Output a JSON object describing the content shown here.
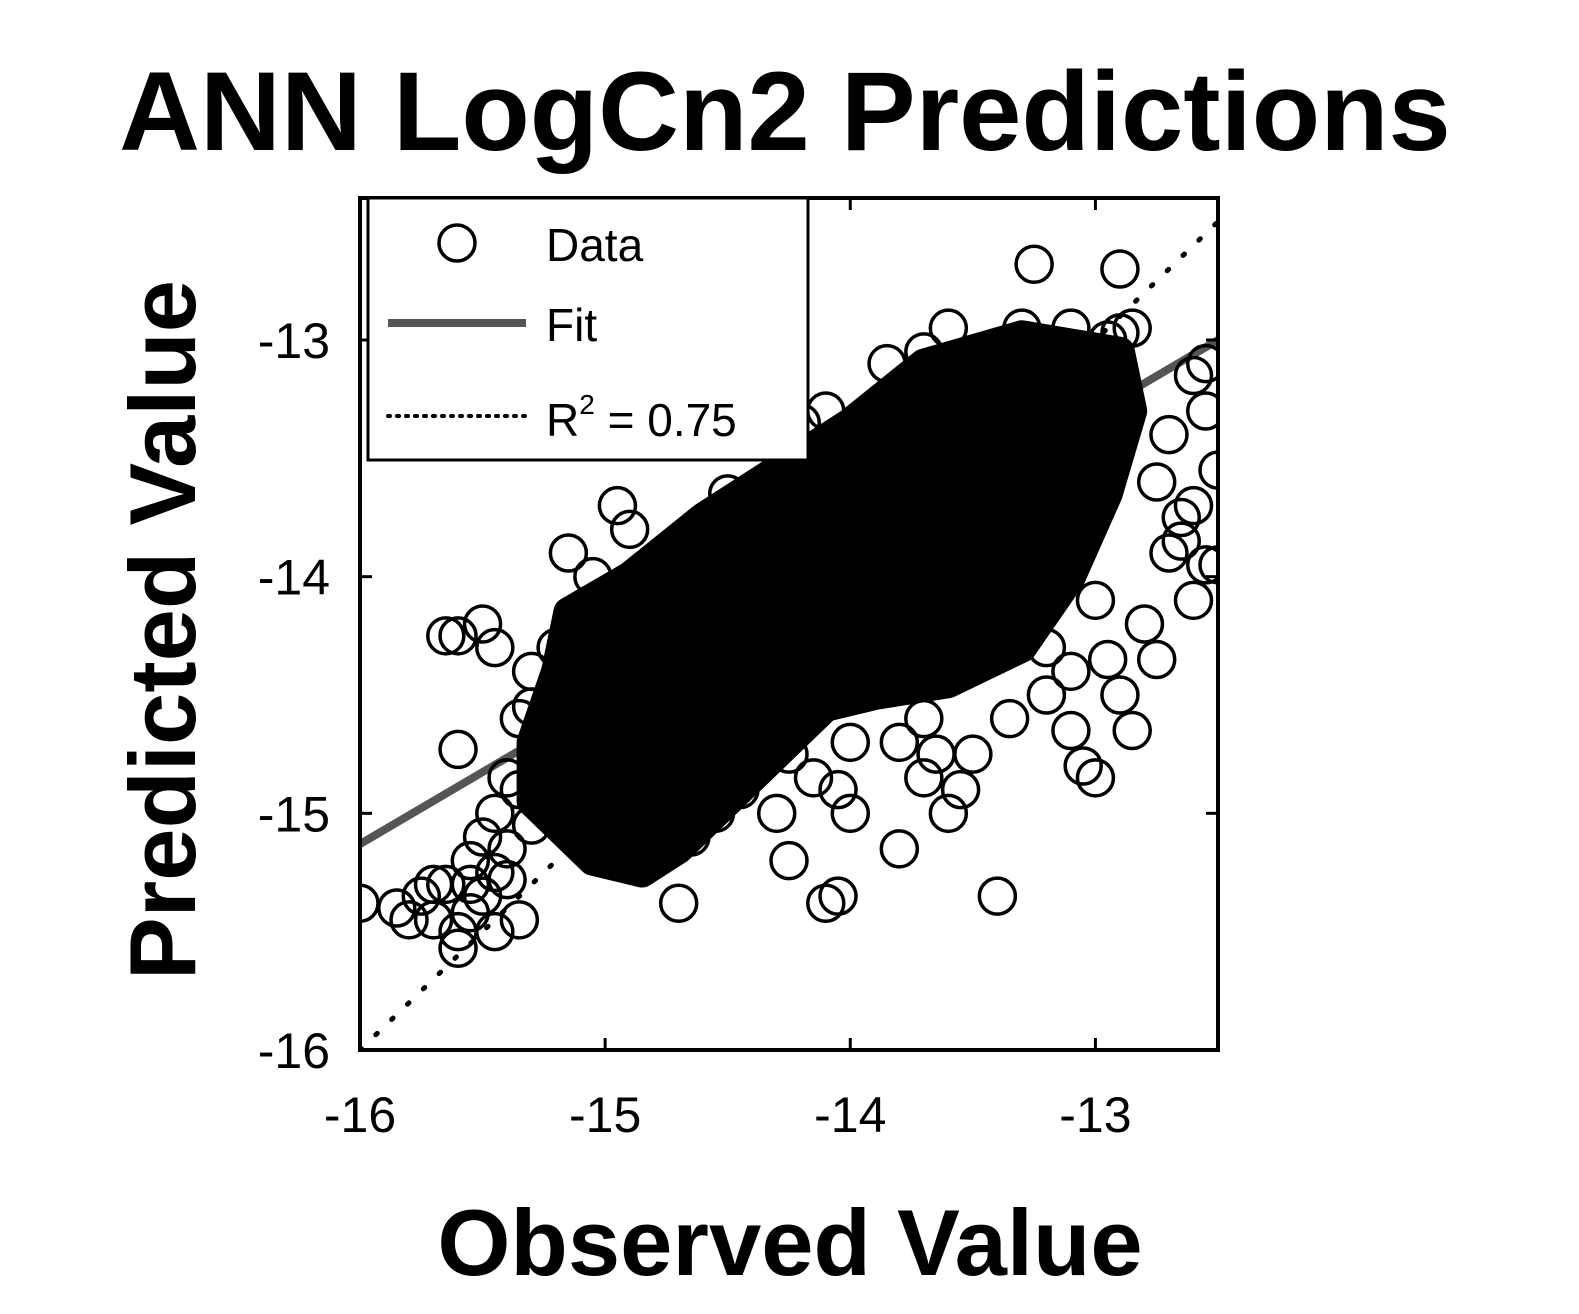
{
  "chart_data": {
    "type": "scatter",
    "title": "ANN LogCn2 Predictions",
    "xlabel": "Observed Value",
    "ylabel": "Predicted Value",
    "xlim": [
      -16,
      -12.5
    ],
    "ylim": [
      -16,
      -12.4
    ],
    "xticks": [
      -16,
      -15,
      -14,
      -13
    ],
    "yticks": [
      -16,
      -15,
      -14,
      -13
    ],
    "xtick_labels": [
      "-16",
      "-15",
      "-14",
      "-13"
    ],
    "ytick_labels": [
      "-16",
      "-15",
      "-14",
      "-13"
    ],
    "grid": false,
    "legend_position": "top-left",
    "marker_color": "#000000",
    "fit_color": "#555555",
    "series": [
      {
        "name": "Data",
        "kind": "scatter",
        "marker": "circle-open",
        "dense_core_polygon": [
          [
            -15.05,
            -15.2
          ],
          [
            -15.3,
            -14.95
          ],
          [
            -15.3,
            -14.7
          ],
          [
            -15.2,
            -14.4
          ],
          [
            -15.15,
            -14.15
          ],
          [
            -14.9,
            -14.0
          ],
          [
            -14.6,
            -13.75
          ],
          [
            -14.3,
            -13.55
          ],
          [
            -14.0,
            -13.35
          ],
          [
            -13.7,
            -13.1
          ],
          [
            -13.3,
            -12.98
          ],
          [
            -12.9,
            -13.05
          ],
          [
            -12.85,
            -13.3
          ],
          [
            -12.95,
            -13.65
          ],
          [
            -13.1,
            -14.0
          ],
          [
            -13.3,
            -14.3
          ],
          [
            -13.6,
            -14.45
          ],
          [
            -13.9,
            -14.5
          ],
          [
            -14.1,
            -14.55
          ],
          [
            -14.3,
            -14.75
          ],
          [
            -14.5,
            -14.95
          ],
          [
            -14.7,
            -15.15
          ],
          [
            -14.85,
            -15.25
          ]
        ],
        "points": [
          [
            -16.0,
            -15.38
          ],
          [
            -15.85,
            -15.4
          ],
          [
            -15.75,
            -15.35
          ],
          [
            -15.7,
            -15.45
          ],
          [
            -15.65,
            -15.3
          ],
          [
            -15.6,
            -15.5
          ],
          [
            -15.6,
            -15.57
          ],
          [
            -15.55,
            -15.42
          ],
          [
            -15.5,
            -15.35
          ],
          [
            -15.45,
            -15.5
          ],
          [
            -15.4,
            -15.28
          ],
          [
            -15.35,
            -15.45
          ],
          [
            -15.55,
            -15.2
          ],
          [
            -15.5,
            -15.1
          ],
          [
            -15.45,
            -15.0
          ],
          [
            -15.4,
            -15.15
          ],
          [
            -15.35,
            -14.9
          ],
          [
            -15.3,
            -15.05
          ],
          [
            -15.25,
            -14.75
          ],
          [
            -15.6,
            -14.25
          ],
          [
            -15.65,
            -14.25
          ],
          [
            -15.5,
            -14.2
          ],
          [
            -15.45,
            -14.3
          ],
          [
            -15.3,
            -14.4
          ],
          [
            -15.35,
            -14.6
          ],
          [
            -15.6,
            -14.73
          ],
          [
            -15.15,
            -13.9
          ],
          [
            -15.05,
            -14.0
          ],
          [
            -14.95,
            -13.7
          ],
          [
            -14.9,
            -13.8
          ],
          [
            -14.7,
            -15.38
          ],
          [
            -14.95,
            -15.2
          ],
          [
            -14.85,
            -15.15
          ],
          [
            -14.75,
            -15.05
          ],
          [
            -14.55,
            -15.0
          ],
          [
            -14.45,
            -14.9
          ],
          [
            -14.3,
            -15.0
          ],
          [
            -14.15,
            -14.85
          ],
          [
            -14.05,
            -14.9
          ],
          [
            -14.0,
            -15.0
          ],
          [
            -14.25,
            -15.2
          ],
          [
            -14.25,
            -14.75
          ],
          [
            -14.1,
            -15.38
          ],
          [
            -14.05,
            -15.35
          ],
          [
            -13.8,
            -15.15
          ],
          [
            -13.6,
            -15.0
          ],
          [
            -13.55,
            -14.9
          ],
          [
            -13.7,
            -14.85
          ],
          [
            -13.5,
            -14.75
          ],
          [
            -13.4,
            -15.35
          ],
          [
            -13.35,
            -14.6
          ],
          [
            -13.2,
            -14.5
          ],
          [
            -13.1,
            -14.65
          ],
          [
            -13.05,
            -14.8
          ],
          [
            -13.0,
            -14.85
          ],
          [
            -12.85,
            -14.65
          ],
          [
            -12.9,
            -14.5
          ],
          [
            -12.75,
            -14.35
          ],
          [
            -12.8,
            -14.2
          ],
          [
            -12.6,
            -14.1
          ],
          [
            -12.55,
            -13.95
          ],
          [
            -12.5,
            -13.95
          ],
          [
            -12.65,
            -13.85
          ],
          [
            -12.6,
            -13.7
          ],
          [
            -12.75,
            -13.6
          ],
          [
            -12.7,
            -13.4
          ],
          [
            -12.55,
            -13.3
          ],
          [
            -12.5,
            -13.55
          ],
          [
            -12.6,
            -13.15
          ],
          [
            -12.55,
            -13.1
          ],
          [
            -12.9,
            -12.97
          ],
          [
            -12.95,
            -13.0
          ],
          [
            -12.85,
            -12.95
          ],
          [
            -13.1,
            -12.95
          ],
          [
            -13.3,
            -12.95
          ],
          [
            -13.6,
            -12.95
          ],
          [
            -13.45,
            -13.05
          ],
          [
            -13.7,
            -13.05
          ],
          [
            -13.25,
            -12.68
          ],
          [
            -12.9,
            -12.7
          ],
          [
            -14.1,
            -13.3
          ],
          [
            -14.3,
            -13.6
          ],
          [
            -14.5,
            -13.65
          ],
          [
            -14.2,
            -13.35
          ],
          [
            -13.85,
            -13.1
          ],
          [
            -12.7,
            -13.9
          ],
          [
            -12.65,
            -13.75
          ],
          [
            -13.0,
            -14.1
          ],
          [
            -12.95,
            -14.35
          ],
          [
            -13.1,
            -14.4
          ],
          [
            -13.2,
            -14.3
          ],
          [
            -13.7,
            -14.6
          ],
          [
            -13.65,
            -14.75
          ],
          [
            -13.8,
            -14.7
          ],
          [
            -14.0,
            -14.7
          ],
          [
            -14.4,
            -14.75
          ],
          [
            -14.65,
            -15.1
          ],
          [
            -15.0,
            -14.85
          ],
          [
            -15.15,
            -14.55
          ],
          [
            -15.2,
            -14.3
          ],
          [
            -15.3,
            -14.55
          ],
          [
            -15.4,
            -14.85
          ],
          [
            -15.45,
            -15.25
          ],
          [
            -15.55,
            -15.3
          ],
          [
            -15.7,
            -15.3
          ],
          [
            -15.8,
            -15.45
          ]
        ]
      },
      {
        "name": "Fit",
        "kind": "line",
        "x": [
          -16.0,
          -12.5
        ],
        "y": [
          -15.13,
          -13.0
        ]
      },
      {
        "name": "R² = 0.75",
        "kind": "dotted-line",
        "x": [
          -16.0,
          -12.5
        ],
        "y": [
          -16.0,
          -12.5
        ]
      }
    ],
    "legend": {
      "entries": [
        {
          "label": "Data",
          "symbol": "circle-open"
        },
        {
          "label": "Fit",
          "symbol": "solid-line"
        },
        {
          "label": "R",
          "sup": "2",
          "suffix": " = 0.75",
          "symbol": "dotted-line"
        }
      ]
    }
  }
}
